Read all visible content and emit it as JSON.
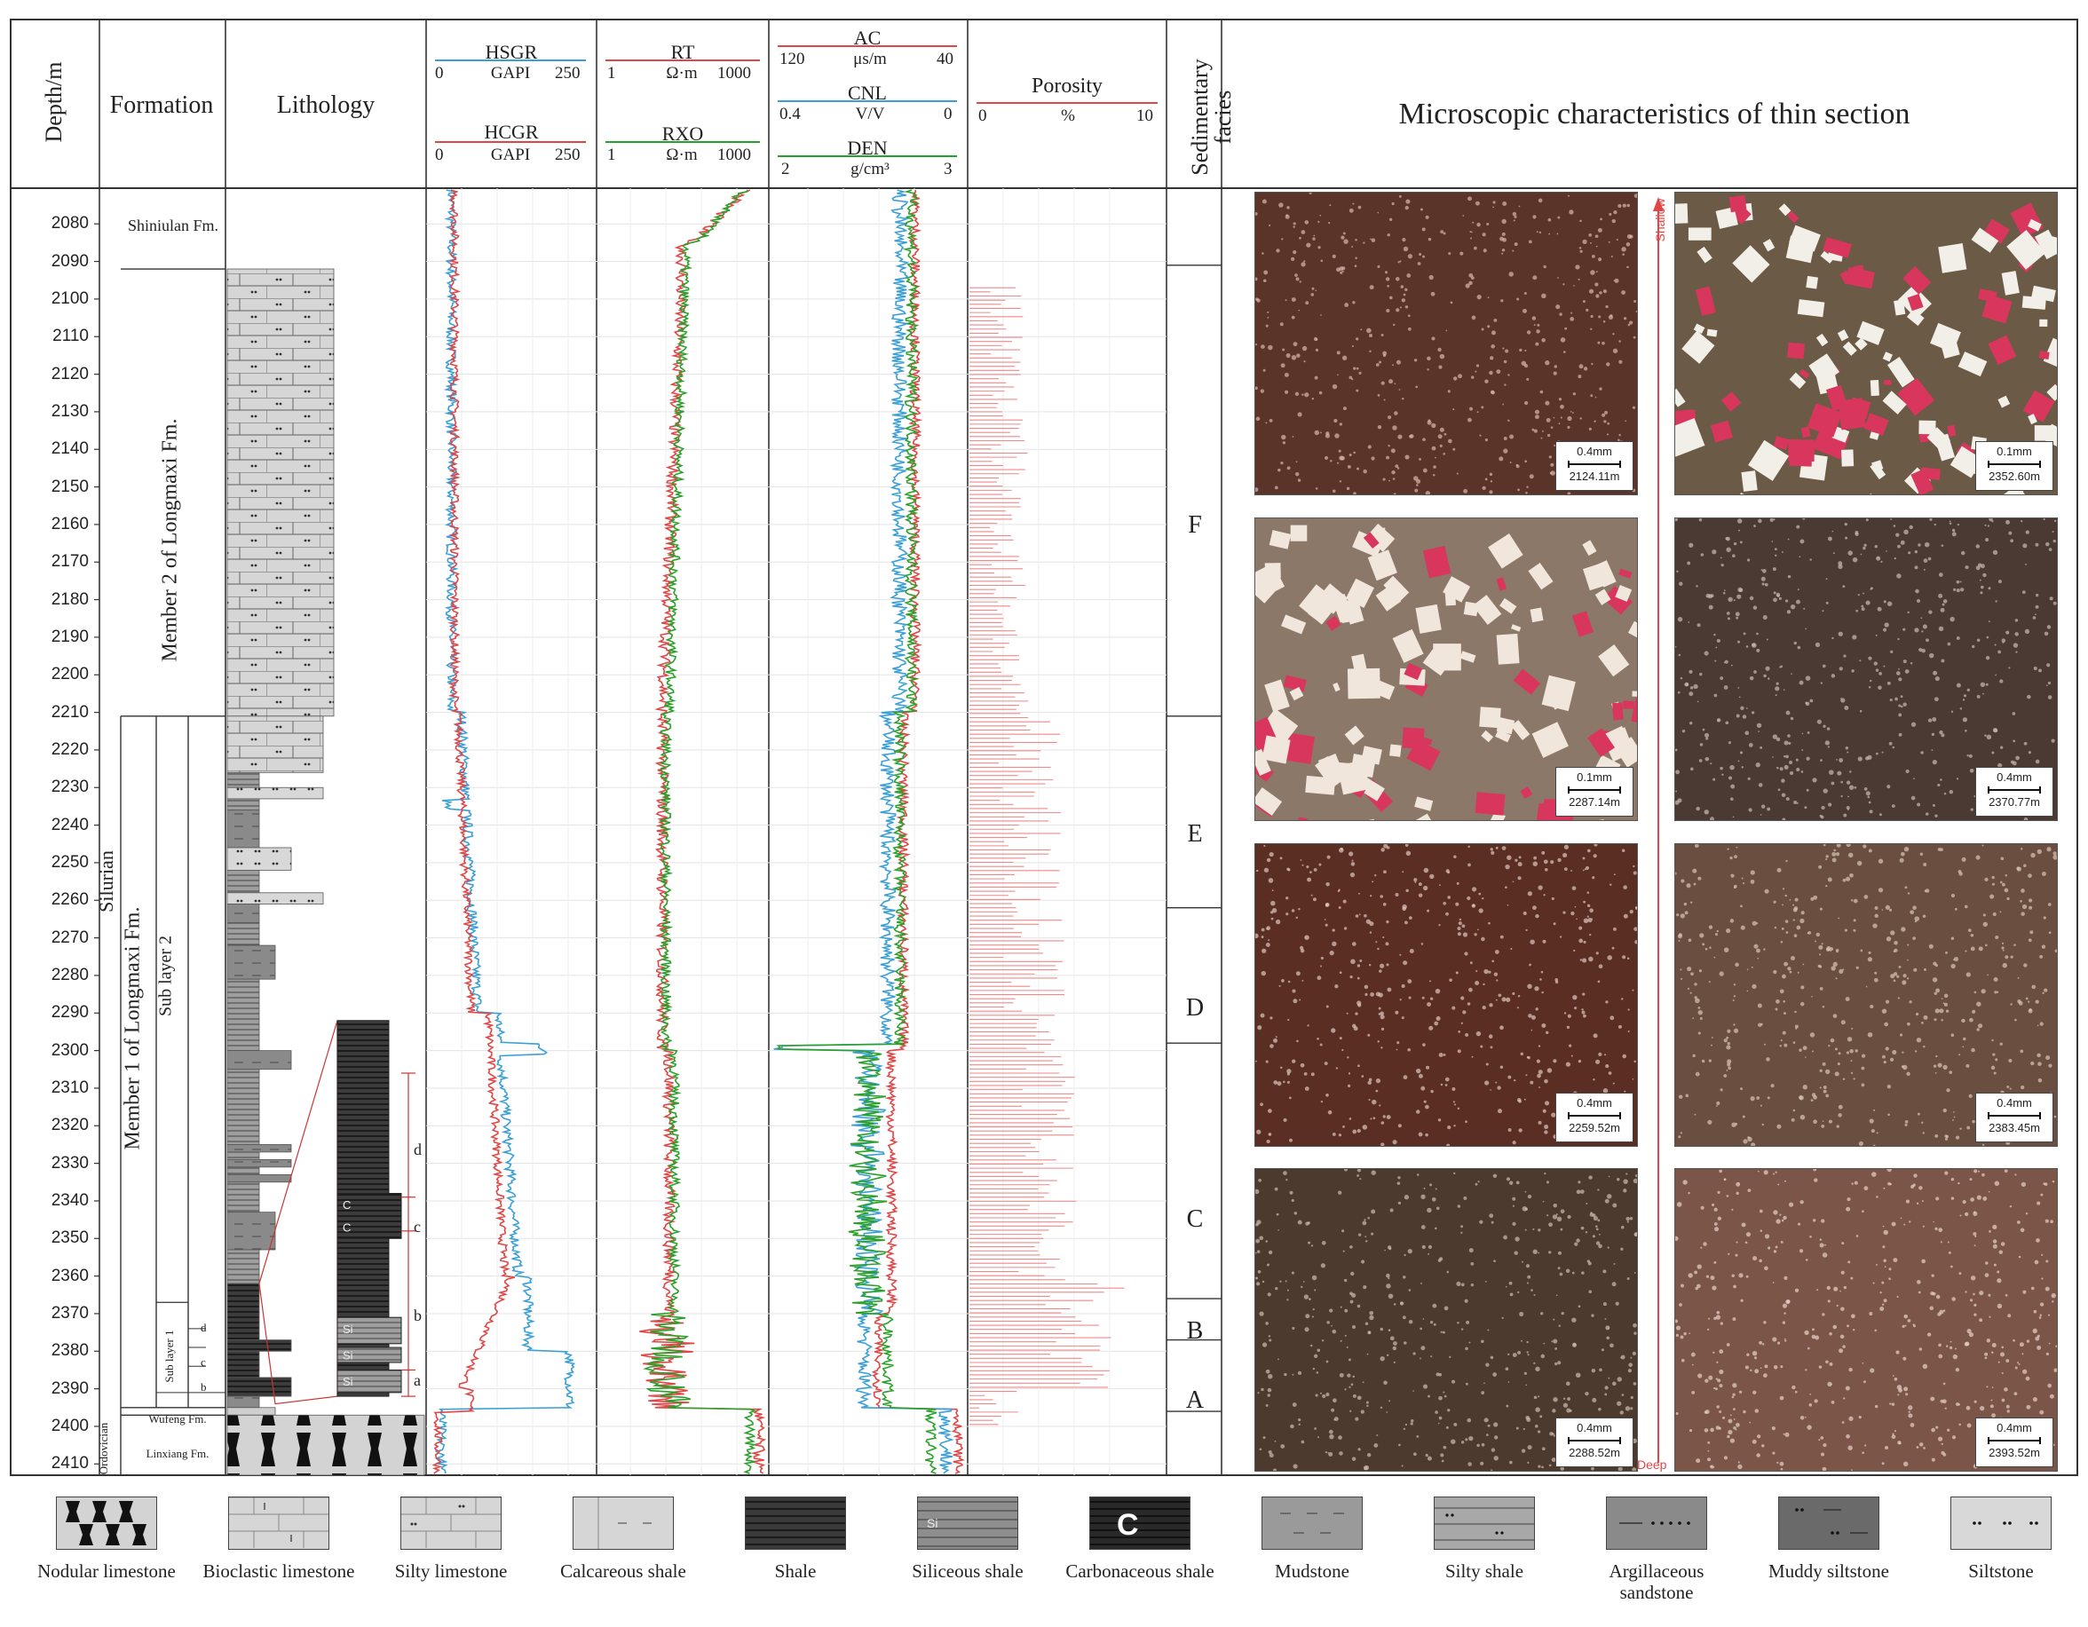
{
  "header": {
    "depth": "Depth/m",
    "formation": "Formation",
    "lithology": "Lithology",
    "porosity": "Porosity",
    "porosity_min": "0",
    "porosity_unit": "%",
    "porosity_max": "10",
    "facies": "Sedimentary facies",
    "micro": "Microscopic characteristics of thin section"
  },
  "curves": {
    "hsgr": {
      "name": "HSGR",
      "min": "0",
      "unit": "GAPI",
      "max": "250",
      "color": "#3a9fd6"
    },
    "hcgr": {
      "name": "HCGR",
      "min": "0",
      "unit": "GAPI",
      "max": "250",
      "color": "#e04646"
    },
    "rt": {
      "name": "RT",
      "min": "1",
      "unit": "Ω·m",
      "max": "1000",
      "color": "#e04646"
    },
    "rxo": {
      "name": "RXO",
      "min": "1",
      "unit": "Ω·m",
      "max": "1000",
      "color": "#2aa02a"
    },
    "ac": {
      "name": "AC",
      "min": "120",
      "unit": "μs/m",
      "max": "40",
      "color": "#e04646"
    },
    "cnl": {
      "name": "CNL",
      "min": "0.4",
      "unit": "V/V",
      "max": "0",
      "color": "#3a9fd6"
    },
    "den": {
      "name": "DEN",
      "min": "2",
      "unit": "g/cm³",
      "max": "3",
      "color": "#2aa02a"
    }
  },
  "depth_ticks": [
    "2080",
    "2090",
    "2100",
    "2110",
    "2120",
    "2130",
    "2140",
    "2150",
    "2160",
    "2170",
    "2180",
    "2190",
    "2200",
    "2210",
    "2220",
    "2230",
    "2240",
    "2250",
    "2260",
    "2270",
    "2280",
    "2290",
    "2300",
    "2310",
    "2320",
    "2330",
    "2340",
    "2350",
    "2360",
    "2370",
    "2380",
    "2390",
    "2400",
    "2410"
  ],
  "formation": {
    "system_silurian": "Silurian",
    "system_ordovician": "Ordovician",
    "shiniulan": "Shiniulan Fm.",
    "member2": "Member 2 of Longmaxi Fm.",
    "member1": "Member 1 of Longmaxi Fm.",
    "sublayer2": "Sub layer 2",
    "sublayer1": "Sub layer 1",
    "sub_d": "d",
    "sub_c": "c",
    "sub_b": "b",
    "sub_a": "a",
    "wufeng": "Wufeng Fm.",
    "linxiang": "Linxiang Fm."
  },
  "inset": {
    "labels": [
      "d",
      "c",
      "b",
      "a"
    ],
    "si": "Si",
    "c": "C"
  },
  "facies": [
    "F",
    "E",
    "D",
    "C",
    "B",
    "A"
  ],
  "arrow": {
    "shallow": "Shallow",
    "deep": "Deep"
  },
  "photos": [
    {
      "scale": "0.4mm",
      "depth": "2124.11m",
      "base": "#5a3428",
      "tone": "#d9b6b0"
    },
    {
      "scale": "0.1mm",
      "depth": "2352.60m",
      "base": "#6b5a45",
      "tone": "#f2efe8"
    },
    {
      "scale": "0.1mm",
      "depth": "2287.14m",
      "base": "#8b7868",
      "tone": "#f0e6dc"
    },
    {
      "scale": "0.4mm",
      "depth": "2370.77m",
      "base": "#4a3a33",
      "tone": "#c9bcb4"
    },
    {
      "scale": "0.4mm",
      "depth": "2259.52m",
      "base": "#5a2e22",
      "tone": "#e0c8c0"
    },
    {
      "scale": "0.4mm",
      "depth": "2383.45m",
      "base": "#6a4e40",
      "tone": "#d8c6b8"
    },
    {
      "scale": "0.4mm",
      "depth": "2288.52m",
      "base": "#4d3a2e",
      "tone": "#cdbcb0"
    },
    {
      "scale": "0.4mm",
      "depth": "2393.52m",
      "base": "#7a5548",
      "tone": "#ead2c8"
    }
  ],
  "legend": [
    {
      "label": "Nodular limestone"
    },
    {
      "label": "Bioclastic limestone"
    },
    {
      "label": "Silty limestone"
    },
    {
      "label": "Calcareous shale"
    },
    {
      "label": "Shale"
    },
    {
      "label": "Siliceous shale"
    },
    {
      "label": "Carbonaceous shale"
    },
    {
      "label": "Mudstone"
    },
    {
      "label": "Silty shale"
    },
    {
      "label": "Argillaceous sandstone"
    },
    {
      "label": "Muddy siltstone"
    },
    {
      "label": "Siltstone"
    }
  ]
}
